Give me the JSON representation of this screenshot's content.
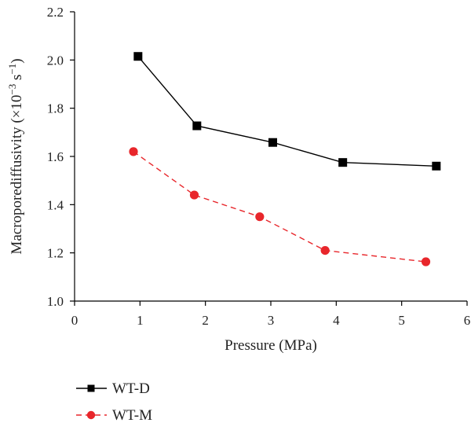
{
  "chart_data": {
    "type": "line",
    "title": "",
    "xlabel": "Pressure (MPa)",
    "ylabel": {
      "main": "Macroporediffusivity (×10",
      "exp1": "−3",
      "mid": " s",
      "exp2": "−1",
      "close": ")"
    },
    "xlim": [
      0,
      6
    ],
    "ylim": [
      1.0,
      2.2
    ],
    "xticks": [
      0,
      1,
      2,
      3,
      4,
      5,
      6
    ],
    "yticks": [
      "1.0",
      "1.2",
      "1.4",
      "1.6",
      "1.8",
      "2.0",
      "2.2"
    ],
    "grid": false,
    "legend_position": "bottom-left",
    "series": [
      {
        "name": "WT-D",
        "color": "#000000",
        "marker": "square",
        "line_style": "solid",
        "x": [
          0.97,
          1.87,
          3.03,
          4.1,
          5.53
        ],
        "y": [
          2.015,
          1.727,
          1.658,
          1.575,
          1.56
        ]
      },
      {
        "name": "WT-M",
        "color": "#e8262b",
        "marker": "circle",
        "line_style": "dashed",
        "x": [
          0.9,
          1.83,
          2.83,
          3.83,
          5.37
        ],
        "y": [
          1.62,
          1.44,
          1.35,
          1.21,
          1.163
        ]
      }
    ]
  }
}
